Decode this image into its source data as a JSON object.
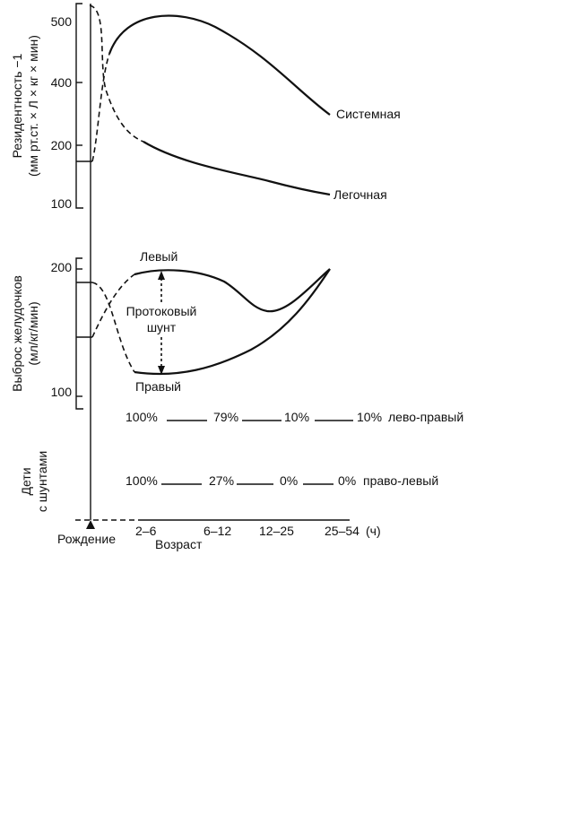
{
  "chart_data": [
    {
      "type": "line",
      "panel": "resistance",
      "ylabel_line1": "Резидентность −1",
      "ylabel_line2": "(мм рт.ст. × Л × кг × мин)",
      "yticks": [
        "500",
        "400",
        "200",
        "100"
      ],
      "series": [
        {
          "name": "Системная",
          "x": [
            0,
            2,
            6,
            12,
            25,
            54
          ],
          "y": [
            170,
            420,
            505,
            460,
            380,
            300
          ]
        },
        {
          "name": "Легочная",
          "x": [
            0,
            2,
            6,
            12,
            25,
            54
          ],
          "y": [
            520,
            400,
            205,
            170,
            140,
            120
          ]
        }
      ]
    },
    {
      "type": "line",
      "panel": "ventricular_output",
      "ylabel_line1": "Выброс желудочков",
      "ylabel_line2": "(мл/кг/мин)",
      "yticks": [
        "200",
        "100"
      ],
      "series": [
        {
          "name": "Левый",
          "values_note": "",
          "x": [
            0,
            2,
            6,
            12,
            25,
            54
          ],
          "y": [
            140,
            170,
            200,
            195,
            165,
            205
          ]
        },
        {
          "name": "Правый",
          "x": [
            0,
            2,
            6,
            12,
            25,
            54
          ],
          "y": [
            188,
            130,
            112,
            120,
            155,
            205
          ]
        }
      ],
      "annotation": {
        "line1": "Протоковый",
        "line2": "шунт"
      }
    }
  ],
  "shunts": {
    "label_line1": "Дети",
    "label_line2": "с шунтами",
    "left_right": {
      "values": [
        "100%",
        "79%",
        "10%",
        "10%"
      ],
      "suffix": "лево-правый"
    },
    "right_left": {
      "values": [
        "100%",
        "27%",
        "0%",
        "0%"
      ],
      "suffix": "право-левый"
    }
  },
  "xaxis": {
    "birth_label": "Рождение",
    "ticks": [
      "2–6",
      "6–12",
      "12–25",
      "25–54"
    ],
    "unit": "(ч)",
    "title": "Возраст"
  }
}
